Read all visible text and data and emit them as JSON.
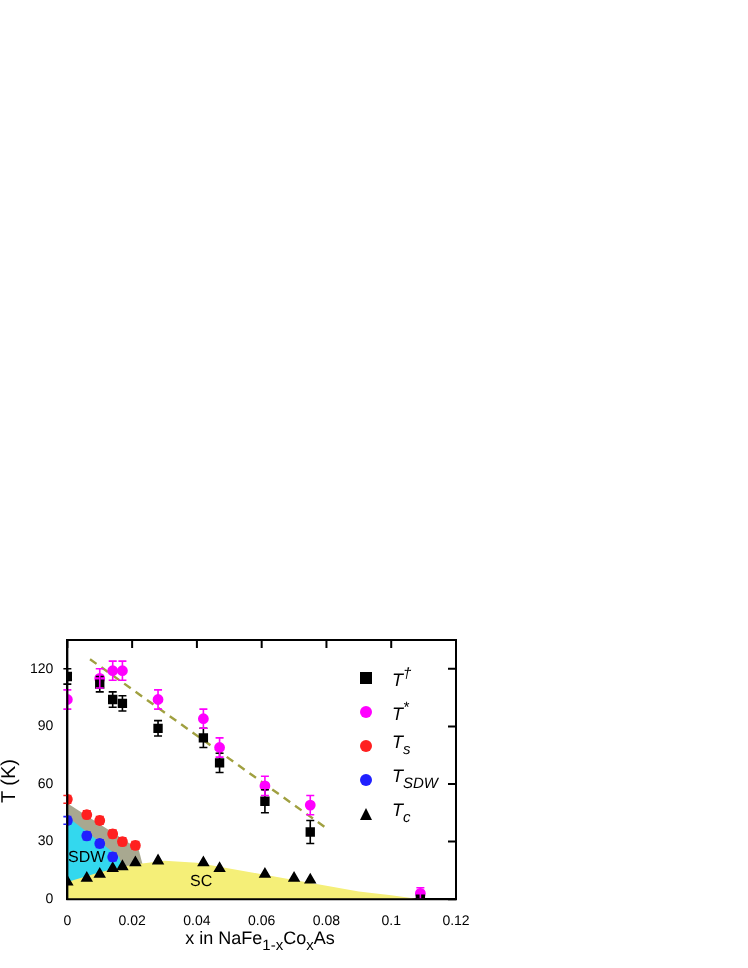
{
  "chart_data": {
    "type": "scatter",
    "xlabel": "x in NaFe$_{1-x}$Co$_{x}$As",
    "ylabel": "T (K)",
    "xlim": [
      0,
      0.12
    ],
    "xticks": [
      0,
      0.02,
      0.04,
      0.06,
      0.08,
      0.1,
      0.12
    ],
    "ylim": [
      0,
      135
    ],
    "yticks": [
      0,
      30,
      60,
      90,
      120
    ],
    "grid": false,
    "legend": "top right",
    "annotations": [
      "SDW",
      "SC"
    ],
    "series": [
      {
        "type": "area",
        "color": "#a8a890",
        "x": [
          0,
          0.022,
          0.026
        ],
        "values": [
          50,
          26,
          0
        ]
      },
      {
        "type": "area",
        "color": "#33d8ee",
        "x": [
          0,
          0.016,
          0.02
        ],
        "values": [
          43,
          22,
          0
        ]
      },
      {
        "type": "area",
        "color": "#f5ef78",
        "x": [
          0,
          0.01,
          0.02,
          0.03,
          0.04,
          0.05,
          0.06,
          0.07,
          0.08,
          0.09,
          0.1,
          0.109
        ],
        "values": [
          9,
          14,
          18,
          20,
          19,
          16,
          13,
          10,
          7,
          4,
          2,
          0
        ]
      },
      {
        "type": "line",
        "color": "#a0a040",
        "line_style": "dashed",
        "marker": "none",
        "x": [
          0.007,
          0.08
        ],
        "values": [
          125,
          37
        ]
      },
      {
        "name": "T$^{†}$",
        "color": "#000000",
        "marker": "square",
        "x": [
          0,
          0.01,
          0.014,
          0.017,
          0.028,
          0.042,
          0.047,
          0.061,
          0.075,
          0.109
        ],
        "values": [
          116,
          112,
          104,
          102,
          89,
          84,
          71,
          51,
          35,
          0
        ],
        "errors": [
          4,
          4,
          4,
          4,
          4,
          5,
          5,
          6,
          6,
          null
        ]
      },
      {
        "name": "T$^{*}$",
        "color": "#ff00ff",
        "marker": "circle",
        "x": [
          0,
          0.01,
          0.014,
          0.017,
          0.028,
          0.042,
          0.047,
          0.061,
          0.075,
          0.109
        ],
        "values": [
          104,
          115,
          119,
          119,
          104,
          94,
          79,
          59,
          49,
          3
        ],
        "errors": [
          5,
          5,
          5,
          5,
          5,
          5,
          5,
          5,
          5,
          3
        ]
      },
      {
        "name": "T$_{s}$",
        "color": "#ff2020",
        "marker": "circle",
        "x": [
          0,
          0.006,
          0.01,
          0.014,
          0.017,
          0.021
        ],
        "values": [
          52,
          44,
          41,
          34,
          30,
          28
        ],
        "errors": [
          2,
          2,
          2,
          2,
          2,
          2
        ]
      },
      {
        "name": "T$_{SDW}$",
        "color": "#2020ff",
        "marker": "circle",
        "x": [
          0,
          0.006,
          0.01,
          0.014
        ],
        "values": [
          41,
          33,
          29,
          22
        ],
        "errors": [
          2,
          2,
          2,
          2
        ]
      },
      {
        "name": "T$_{c}$",
        "color": "#000000",
        "marker": "triangle",
        "x": [
          0,
          0.006,
          0.01,
          0.014,
          0.017,
          0.021,
          0.028,
          0.042,
          0.047,
          0.061,
          0.07,
          0.075
        ],
        "values": [
          9,
          11,
          13,
          16,
          17,
          19,
          20,
          19,
          16,
          13,
          11,
          10
        ]
      }
    ]
  }
}
